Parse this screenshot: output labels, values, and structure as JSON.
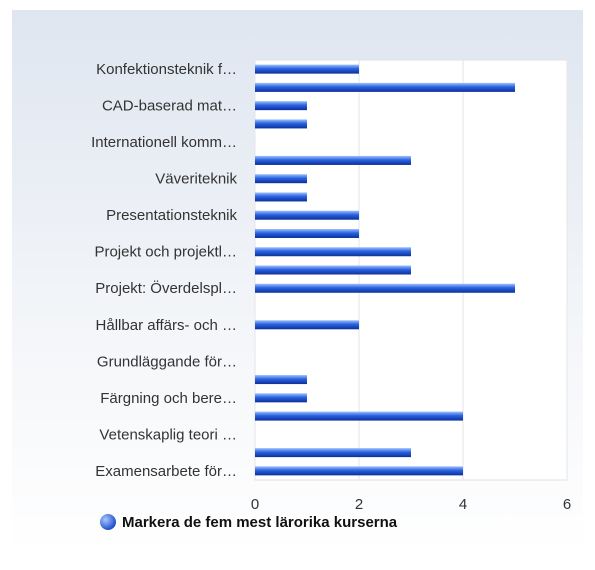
{
  "chart_data": {
    "type": "barh",
    "categories": [
      "Konfektionsteknik f…",
      null,
      "CAD-baserad mat…",
      null,
      "Internationell komm…",
      null,
      "Väveriteknik",
      null,
      "Presentationsteknik",
      null,
      "Projekt och projektl…",
      null,
      "Projekt: Överdelspl…",
      null,
      "Hållbar affärs- och …",
      null,
      "Grundläggande för…",
      null,
      "Färgning och bere…",
      null,
      "Vetenskaplig teori …",
      null,
      "Examensarbete för…"
    ],
    "series": [
      {
        "name": "Markera de fem mest lärorika kurserna",
        "color": "#2a62e0",
        "values": [
          2,
          5,
          1,
          1,
          0,
          3,
          1,
          1,
          2,
          2,
          3,
          3,
          5,
          0,
          2,
          0,
          0,
          1,
          1,
          4,
          0,
          3,
          4
        ]
      }
    ],
    "xlim": [
      0,
      6
    ],
    "xticks": [
      0,
      2,
      4,
      6
    ],
    "grid": true
  }
}
